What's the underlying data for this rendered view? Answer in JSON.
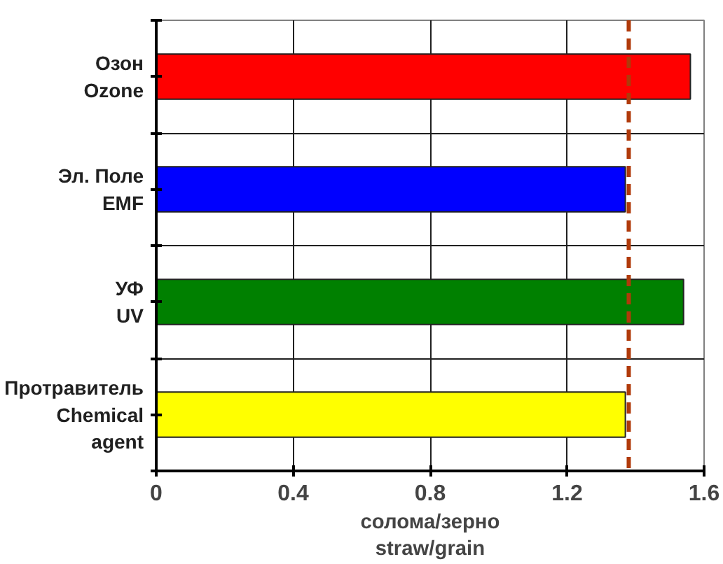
{
  "chart_data": {
    "type": "bar",
    "orientation": "horizontal",
    "categories": [
      "Озон\nOzone",
      "Эл. Поле\nEMF",
      "УФ\nUV",
      "Протравитель\nChemical\nagent"
    ],
    "values": [
      1.56,
      1.37,
      1.54,
      1.37
    ],
    "colors": [
      "#ff0000",
      "#0000ff",
      "#008000",
      "#ffff00"
    ],
    "xlim": [
      0,
      1.6
    ],
    "xticks": [
      0,
      0.4,
      0.8,
      1.2,
      1.6
    ],
    "xlabel": "солома/зерно\nstraw/grain",
    "grid": true,
    "ref_lines": [
      {
        "axis": "x",
        "value": 1.38,
        "color": "#b03a0a",
        "line_style": "dashed"
      }
    ]
  }
}
